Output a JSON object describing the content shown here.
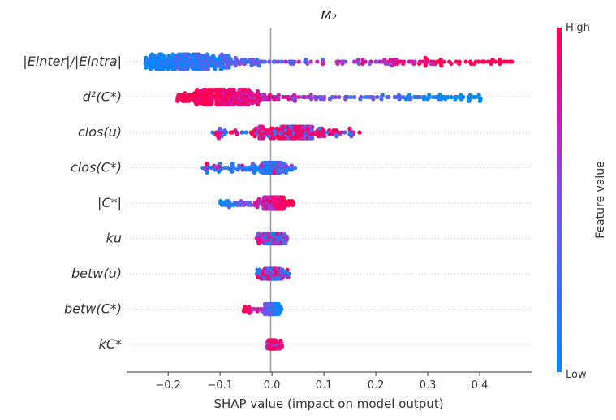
{
  "chart_data": {
    "type": "scatter",
    "subtype": "shap-beeswarm",
    "title": "M₂",
    "xlabel": "SHAP value (impact on model output)",
    "xlim": [
      -0.28,
      0.5
    ],
    "xticks": [
      -0.2,
      -0.1,
      0.0,
      0.1,
      0.2,
      0.3,
      0.4
    ],
    "xtick_labels": [
      "−0.2",
      "−0.1",
      "0.0",
      "0.1",
      "0.2",
      "0.3",
      "0.4"
    ],
    "colorbar": {
      "label": "Feature value",
      "high_label": "High",
      "low_label": "Low",
      "low_color": "#008bfb",
      "high_color": "#ff0052"
    },
    "features": [
      {
        "name": "|Eᵢₙₜₑᵣ|/|Eᵢₙₜᵣₐ|",
        "label": "|Einter|/|Eintra|",
        "label_html": "|E<tspan baseline-shift='sub' font-size='11'>inter</tspan>|/|E<tspan baseline-shift='sub' font-size='11'>intra</tspan>|",
        "min": -0.245,
        "max": 0.465,
        "peak": -0.16,
        "spread": 0.06,
        "count": 420,
        "color_mode": "low_left_high_right",
        "max_dy": 9
      },
      {
        "name": "d²(C*)",
        "label": "d²(C*)",
        "min": -0.19,
        "max": 0.405,
        "peak": -0.09,
        "spread": 0.05,
        "count": 380,
        "color_mode": "high_left_low_right",
        "max_dy": 9
      },
      {
        "name": "clos(u)",
        "label": "clos(u)",
        "min": -0.115,
        "max": 0.18,
        "peak": 0.04,
        "spread": 0.035,
        "count": 260,
        "color_mode": "mixed_high",
        "max_dy": 7
      },
      {
        "name": "clos(C*)",
        "label": "clos(C*)",
        "min": -0.135,
        "max": 0.045,
        "peak": 0.0,
        "spread": 0.015,
        "count": 180,
        "color_mode": "low_dominant",
        "max_dy": 6
      },
      {
        "name": "|C*|",
        "label": "|C*|",
        "min": -0.1,
        "max": 0.045,
        "peak": 0.002,
        "spread": 0.012,
        "count": 160,
        "color_mode": "low_left_high_right",
        "max_dy": 7
      },
      {
        "name": "k̄ᵤ",
        "label": "ku",
        "min": -0.03,
        "max": 0.03,
        "peak": 0.0,
        "spread": 0.01,
        "count": 140,
        "color_mode": "mixed",
        "max_dy": 6
      },
      {
        "name": "betw(u)",
        "label": "betw(u)",
        "min": -0.03,
        "max": 0.035,
        "peak": 0.0,
        "spread": 0.01,
        "count": 140,
        "color_mode": "mixed",
        "max_dy": 6
      },
      {
        "name": "betw(C*)",
        "label": "betw(C*)",
        "min": -0.055,
        "max": 0.025,
        "peak": 0.0,
        "spread": 0.008,
        "count": 110,
        "color_mode": "high_left_low_right",
        "max_dy": 6
      },
      {
        "name": "k_C*",
        "label": "kC*",
        "min": -0.01,
        "max": 0.02,
        "peak": 0.0,
        "spread": 0.004,
        "count": 90,
        "color_mode": "high_dominant",
        "max_dy": 5
      }
    ]
  }
}
